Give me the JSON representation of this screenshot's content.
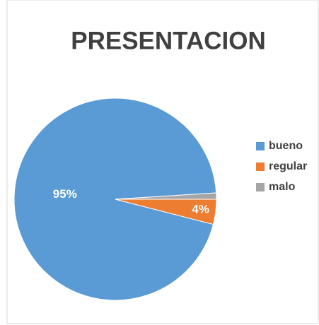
{
  "chart_data": {
    "type": "pie",
    "title": "PRESENTACION",
    "categories": [
      "bueno",
      "regular",
      "malo"
    ],
    "values": [
      95,
      4,
      1
    ],
    "value_labels": [
      "95%",
      "4%",
      null
    ],
    "colors": [
      "#5b9bd5",
      "#ed7d31",
      "#a5a5a5"
    ],
    "legend": "right"
  }
}
